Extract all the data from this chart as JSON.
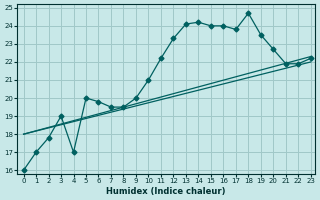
{
  "xlabel": "Humidex (Indice chaleur)",
  "ylabel": "",
  "background_color": "#c8e8e8",
  "grid_color": "#a0c8c8",
  "line_color": "#006060",
  "xlim": [
    -0.5,
    23.3
  ],
  "ylim": [
    15.8,
    25.2
  ],
  "xticks": [
    0,
    1,
    2,
    3,
    4,
    5,
    6,
    7,
    8,
    9,
    10,
    11,
    12,
    13,
    14,
    15,
    16,
    17,
    18,
    19,
    20,
    21,
    22,
    23
  ],
  "yticks": [
    16,
    17,
    18,
    19,
    20,
    21,
    22,
    23,
    24,
    25
  ],
  "series": [
    {
      "x": [
        0,
        1,
        2,
        3,
        4,
        5,
        6,
        7,
        8,
        9,
        10,
        11,
        12,
        13,
        14,
        15,
        16,
        17,
        18,
        19,
        20,
        21,
        22,
        23
      ],
      "y": [
        16.0,
        17.0,
        17.8,
        19.0,
        17.0,
        20.0,
        19.8,
        19.5,
        19.5,
        20.0,
        21.0,
        22.2,
        23.3,
        24.1,
        24.2,
        24.0,
        24.0,
        23.8,
        24.7,
        23.5,
        22.7,
        21.9,
        21.9,
        22.2
      ],
      "marker": "D",
      "markersize": 2.5
    },
    {
      "x": [
        0,
        23
      ],
      "y": [
        18.0,
        22.3
      ],
      "marker": "",
      "markersize": 0
    },
    {
      "x": [
        0,
        23
      ],
      "y": [
        18.0,
        22.0
      ],
      "marker": "",
      "markersize": 0
    }
  ]
}
